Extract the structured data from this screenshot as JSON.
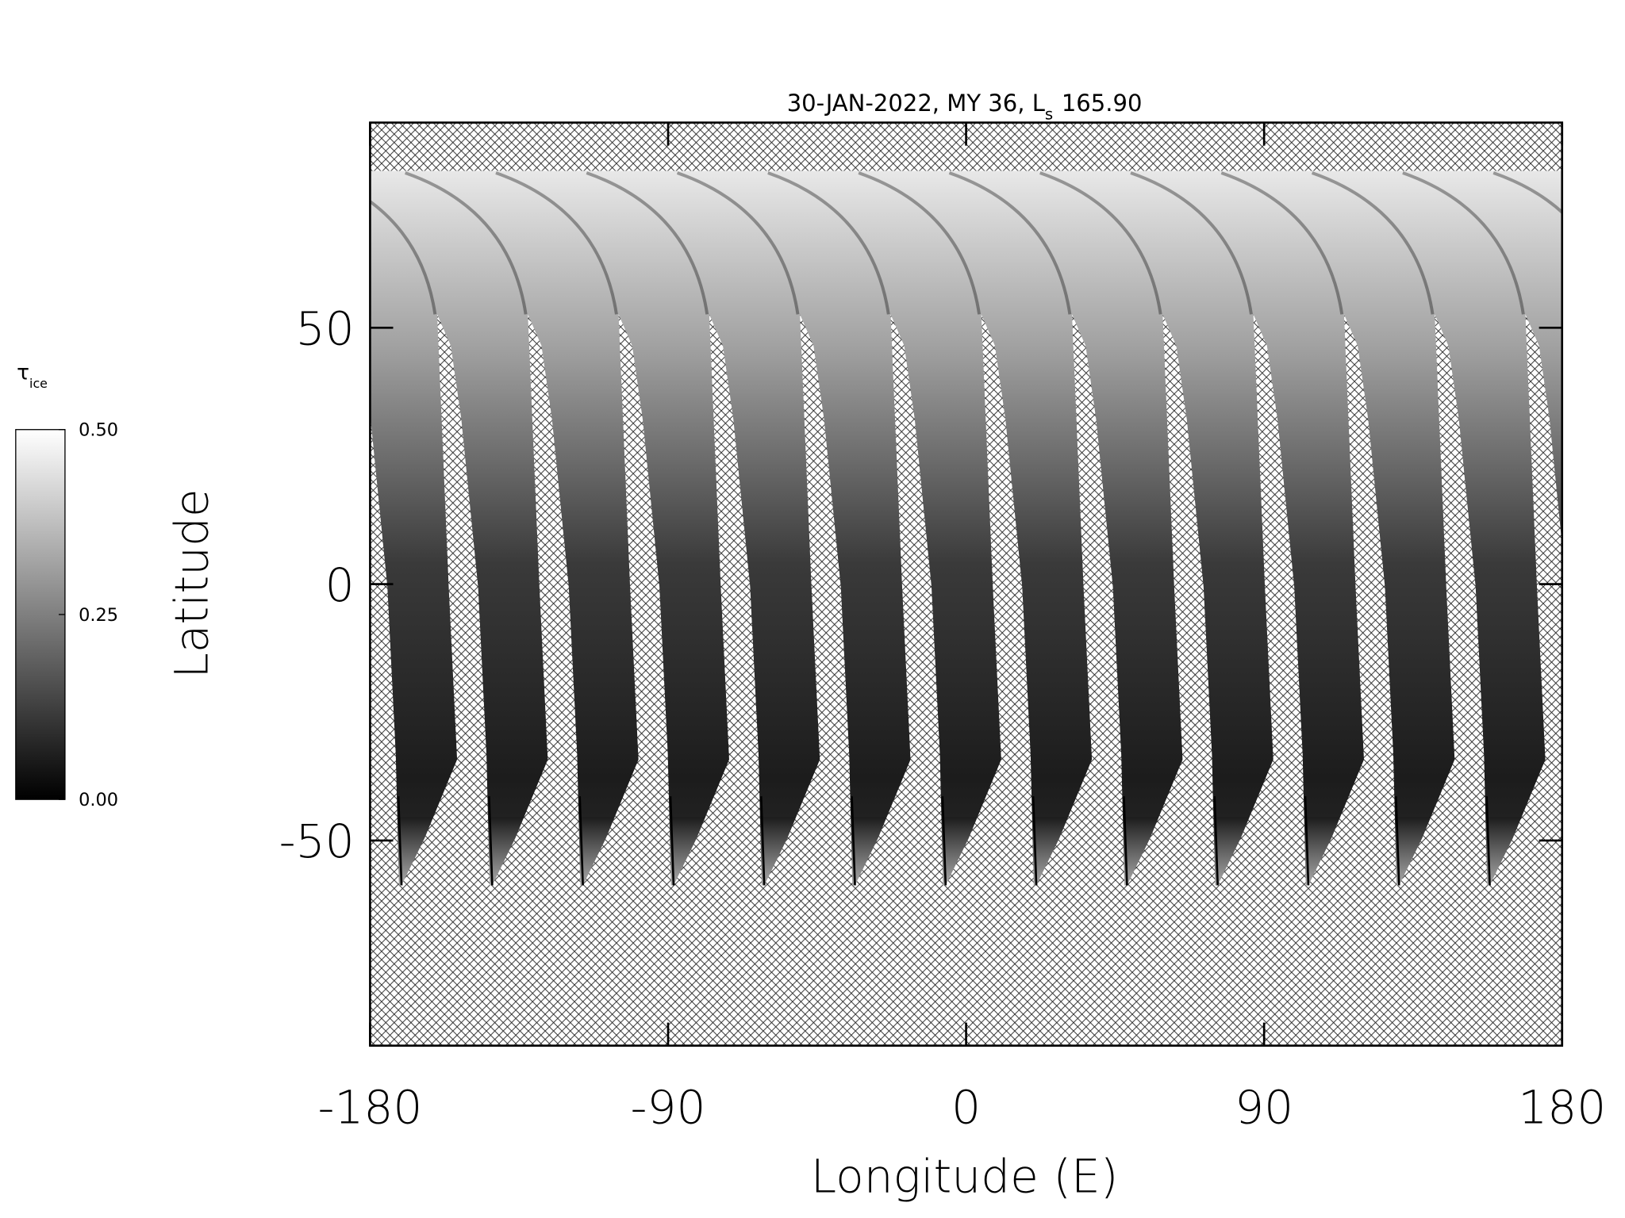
{
  "chart_data": {
    "type": "map",
    "title": "30-JAN-2022, MY 36,  L",
    "title_subscript": "s",
    "title_value": "165.90",
    "xlabel": "Longitude (E)",
    "ylabel": "Latitude",
    "xlim": [
      -180,
      180
    ],
    "xticks": [
      -180,
      -90,
      0,
      90,
      180
    ],
    "ylim": [
      -90,
      90
    ],
    "yticks": [
      -50,
      0,
      50
    ],
    "colorbar": {
      "label": "τ",
      "label_subscript": "ice",
      "colormap": "gray",
      "lim": [
        0,
        0.5
      ],
      "ticks": [
        {
          "value": 0,
          "label": "0.00"
        },
        {
          "value": 0.25,
          "label": "0.25"
        },
        {
          "value": 0.5,
          "label": "0.50"
        }
      ]
    }
  }
}
